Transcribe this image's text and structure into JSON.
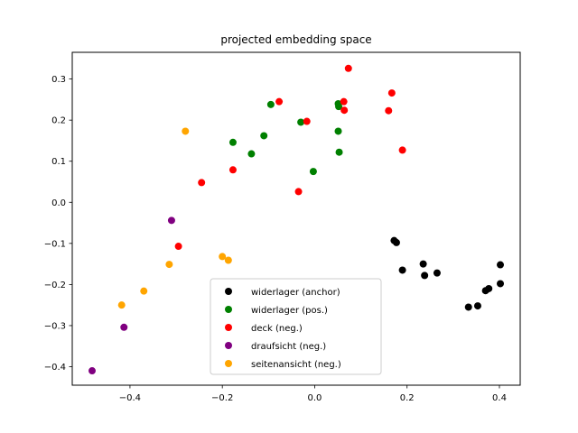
{
  "chart_data": {
    "type": "scatter",
    "title": "projected embedding space",
    "xlabel": "",
    "ylabel": "",
    "xlim": [
      -0.525,
      0.445
    ],
    "ylim": [
      -0.445,
      0.365
    ],
    "xticks": [
      -0.4,
      -0.2,
      0.0,
      0.2,
      0.4
    ],
    "yticks": [
      -0.4,
      -0.3,
      -0.2,
      -0.1,
      0.0,
      0.1,
      0.2,
      0.3
    ],
    "xtick_labels": [
      "−0.4",
      "−0.2",
      "0.0",
      "0.2",
      "0.4"
    ],
    "ytick_labels": [
      "−0.4",
      "−0.3",
      "−0.2",
      "−0.1",
      "0.0",
      "0.1",
      "0.2",
      "0.3"
    ],
    "grid": false,
    "legend_position": "lower-center",
    "series": [
      {
        "name": "widerlager (anchor)",
        "color": "#000000",
        "points": [
          [
            0.172,
            -0.093
          ],
          [
            0.177,
            -0.098
          ],
          [
            0.19,
            -0.165
          ],
          [
            0.235,
            -0.15
          ],
          [
            0.238,
            -0.178
          ],
          [
            0.265,
            -0.172
          ],
          [
            0.333,
            -0.255
          ],
          [
            0.353,
            -0.252
          ],
          [
            0.37,
            -0.215
          ],
          [
            0.377,
            -0.21
          ],
          [
            0.402,
            -0.152
          ],
          [
            0.402,
            -0.198
          ]
        ]
      },
      {
        "name": "widerlager (pos.)",
        "color": "#008000",
        "points": [
          [
            -0.095,
            0.238
          ],
          [
            -0.03,
            0.195
          ],
          [
            0.051,
            0.24
          ],
          [
            0.052,
            0.233
          ],
          [
            0.051,
            0.173
          ],
          [
            0.053,
            0.122
          ],
          [
            -0.177,
            0.146
          ],
          [
            -0.11,
            0.162
          ],
          [
            -0.137,
            0.118
          ],
          [
            -0.003,
            0.075
          ]
        ]
      },
      {
        "name": "deck (neg.)",
        "color": "#ff0000",
        "points": [
          [
            0.073,
            0.326
          ],
          [
            -0.077,
            0.245
          ],
          [
            -0.017,
            0.197
          ],
          [
            0.063,
            0.245
          ],
          [
            0.064,
            0.224
          ],
          [
            0.167,
            0.266
          ],
          [
            0.16,
            0.223
          ],
          [
            0.19,
            0.127
          ],
          [
            -0.177,
            0.079
          ],
          [
            -0.245,
            0.048
          ],
          [
            -0.035,
            0.026
          ],
          [
            -0.295,
            -0.107
          ]
        ]
      },
      {
        "name": "draufsicht (neg.)",
        "color": "#800080",
        "points": [
          [
            -0.31,
            -0.044
          ],
          [
            -0.413,
            -0.304
          ],
          [
            -0.482,
            -0.41
          ]
        ]
      },
      {
        "name": "seitenansicht (neg.)",
        "color": "#ffa500",
        "points": [
          [
            -0.28,
            0.173
          ],
          [
            -0.2,
            -0.132
          ],
          [
            -0.187,
            -0.141
          ],
          [
            -0.315,
            -0.151
          ],
          [
            -0.37,
            -0.216
          ],
          [
            -0.418,
            -0.25
          ]
        ]
      }
    ]
  }
}
